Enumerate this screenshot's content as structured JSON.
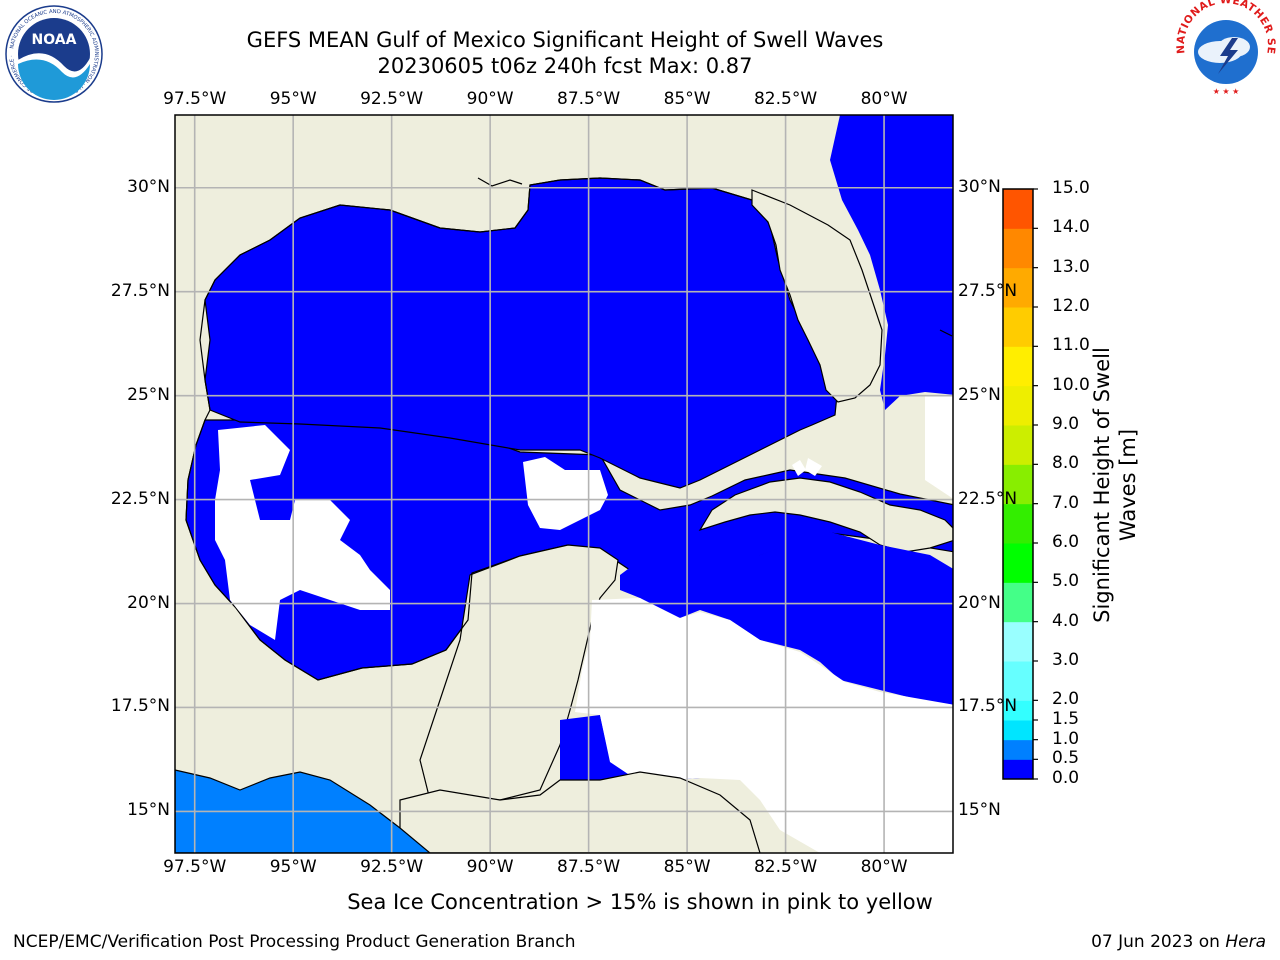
{
  "header": {
    "title_line1": "GEFS MEAN Gulf of Mexico Significant Height of Swell Waves",
    "title_line2": "20230605 t06z 240h fcst   Max: 0.87"
  },
  "logos": {
    "left": "NOAA",
    "left_ring": "NATIONAL OCEANIC AND ATMOSPHERIC ADMINISTRATION · U.S. DEPARTMENT OF COMMERCE ·",
    "right_ring": "NATIONAL WEATHER SERVICE"
  },
  "map": {
    "lon_range": [
      -98.0,
      -78.25
    ],
    "lat_range": [
      14.0,
      31.75
    ],
    "lon_ticks": [
      "97.5°W",
      "95°W",
      "92.5°W",
      "90°W",
      "87.5°W",
      "85°W",
      "82.5°W",
      "80°W"
    ],
    "lat_ticks": [
      "30°N",
      "27.5°N",
      "25°N",
      "22.5°N",
      "20°N",
      "17.5°N",
      "15°N"
    ],
    "colors": {
      "land": "#eeeedd",
      "water_0_05": "#0000ff",
      "water_05_10": "#0080ff",
      "coast": "#000000",
      "grid": "#b4b4b4"
    }
  },
  "colorbar": {
    "label": "Significant Height of Swell Waves [m]",
    "levels": [
      "0.0",
      "0.5",
      "1.0",
      "1.5",
      "2.0",
      "3.0",
      "4.0",
      "5.0",
      "6.0",
      "7.0",
      "8.0",
      "9.0",
      "10.0",
      "11.0",
      "12.0",
      "13.0",
      "14.0",
      "15.0"
    ],
    "colors": [
      "#0000ff",
      "#0080ff",
      "#00e5ff",
      "#33ffff",
      "#66ffff",
      "#99ffff",
      "#44ff88",
      "#00ff00",
      "#33ee00",
      "#88ee00",
      "#ccee00",
      "#eeee00",
      "#ffee00",
      "#ffcc00",
      "#ffaa00",
      "#ff8800",
      "#ff5500",
      "#ff2200",
      "#ff0000"
    ]
  },
  "note": "Sea Ice Concentration > 15% is shown in pink to yellow",
  "footer": {
    "left": "NCEP/EMC/Verification Post Processing Product Generation Branch",
    "date": "07 Jun 2023 on ",
    "host": "Hera"
  }
}
